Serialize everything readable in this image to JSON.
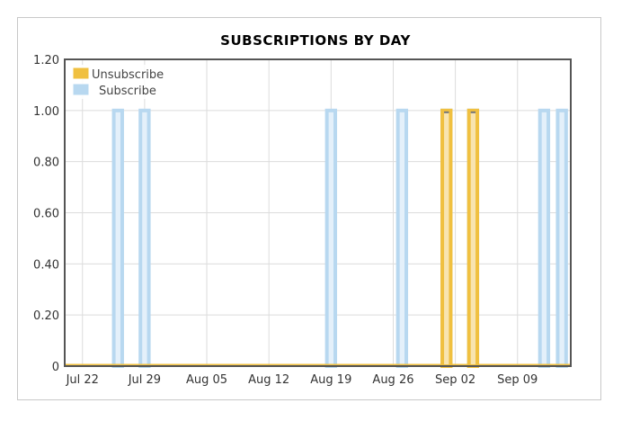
{
  "chart_data": {
    "type": "area",
    "title": "SUBSCRIPTIONS BY DAY",
    "xlabel": "",
    "ylabel": "",
    "ylim": [
      0,
      1.2
    ],
    "y_ticks": [
      "0",
      "0.20",
      "0.40",
      "0.60",
      "0.80",
      "1.00",
      "1.20"
    ],
    "x_ticks": [
      "Jul 22",
      "Jul 29",
      "Aug 05",
      "Aug 12",
      "Aug 19",
      "Aug 26",
      "Sep 02",
      "Sep 09"
    ],
    "grid": true,
    "legend_position": "top-left",
    "x_start": "2013-07-20",
    "x_end": "2013-09-15",
    "series": [
      {
        "name": "Unsubscribe",
        "color": "#f0c040",
        "points": [
          {
            "date": "2013-09-01",
            "value": 1
          },
          {
            "date": "2013-09-04",
            "value": 1
          }
        ]
      },
      {
        "name": "Subscribe",
        "color": "#b8d8f0",
        "points": [
          {
            "date": "2013-07-26",
            "value": 1
          },
          {
            "date": "2013-07-29",
            "value": 1
          },
          {
            "date": "2013-08-19",
            "value": 1
          },
          {
            "date": "2013-08-27",
            "value": 1
          },
          {
            "date": "2013-09-01",
            "value": 1
          },
          {
            "date": "2013-09-04",
            "value": 1
          },
          {
            "date": "2013-09-12",
            "value": 1
          },
          {
            "date": "2013-09-14",
            "value": 1
          }
        ]
      }
    ]
  }
}
